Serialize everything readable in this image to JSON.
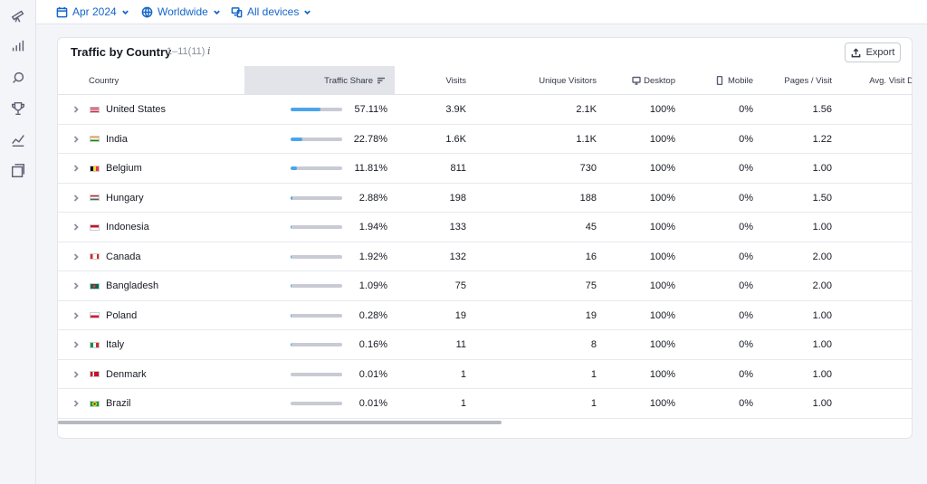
{
  "filters": {
    "date": "Apr 2024",
    "region": "Worldwide",
    "devices": "All devices"
  },
  "rail_icons": [
    "telescope-icon",
    "bar-chart-icon",
    "rocket-icon",
    "trophy-icon",
    "trend-chart-icon",
    "pages-icon"
  ],
  "card": {
    "title": "Traffic by Country",
    "range": "1–11(11)",
    "info": "i",
    "export_label": "Export"
  },
  "columns": {
    "country": "Country",
    "traffic_share": "Traffic Share",
    "visits": "Visits",
    "unique_visitors": "Unique Visitors",
    "desktop": "Desktop",
    "mobile": "Mobile",
    "pages_visit": "Pages / Visit",
    "avg_visit": "Avg. Visit D"
  },
  "rows": [
    {
      "country": "United States",
      "flag": "us",
      "share": "57.11%",
      "share_value": 0.5711,
      "visits": "3.9K",
      "unique": "2.1K",
      "desktop": "100%",
      "mobile": "0%",
      "pages": "1.56"
    },
    {
      "country": "India",
      "flag": "in",
      "share": "22.78%",
      "share_value": 0.2278,
      "visits": "1.6K",
      "unique": "1.1K",
      "desktop": "100%",
      "mobile": "0%",
      "pages": "1.22"
    },
    {
      "country": "Belgium",
      "flag": "be",
      "share": "11.81%",
      "share_value": 0.1181,
      "visits": "811",
      "unique": "730",
      "desktop": "100%",
      "mobile": "0%",
      "pages": "1.00"
    },
    {
      "country": "Hungary",
      "flag": "hu",
      "share": "2.88%",
      "share_value": 0.0288,
      "visits": "198",
      "unique": "188",
      "desktop": "100%",
      "mobile": "0%",
      "pages": "1.50"
    },
    {
      "country": "Indonesia",
      "flag": "id",
      "share": "1.94%",
      "share_value": 0.0194,
      "visits": "133",
      "unique": "45",
      "desktop": "100%",
      "mobile": "0%",
      "pages": "1.00"
    },
    {
      "country": "Canada",
      "flag": "ca",
      "share": "1.92%",
      "share_value": 0.0192,
      "visits": "132",
      "unique": "16",
      "desktop": "100%",
      "mobile": "0%",
      "pages": "2.00"
    },
    {
      "country": "Bangladesh",
      "flag": "bd",
      "share": "1.09%",
      "share_value": 0.0109,
      "visits": "75",
      "unique": "75",
      "desktop": "100%",
      "mobile": "0%",
      "pages": "2.00"
    },
    {
      "country": "Poland",
      "flag": "pl",
      "share": "0.28%",
      "share_value": 0.0028,
      "visits": "19",
      "unique": "19",
      "desktop": "100%",
      "mobile": "0%",
      "pages": "1.00"
    },
    {
      "country": "Italy",
      "flag": "it",
      "share": "0.16%",
      "share_value": 0.0016,
      "visits": "11",
      "unique": "8",
      "desktop": "100%",
      "mobile": "0%",
      "pages": "1.00"
    },
    {
      "country": "Denmark",
      "flag": "dk",
      "share": "0.01%",
      "share_value": 0.0001,
      "visits": "1",
      "unique": "1",
      "desktop": "100%",
      "mobile": "0%",
      "pages": "1.00"
    },
    {
      "country": "Brazil",
      "flag": "br",
      "share": "0.01%",
      "share_value": 0.0001,
      "visits": "1",
      "unique": "1",
      "desktop": "100%",
      "mobile": "0%",
      "pages": "1.00"
    }
  ],
  "colors": {
    "accent": "#1466c8",
    "bar_fill": "#4ba5ec",
    "bar_track": "#c8cbd3"
  }
}
